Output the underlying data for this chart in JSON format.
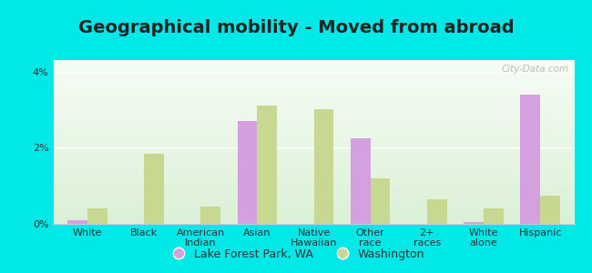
{
  "title": "Geographical mobility - Moved from abroad",
  "categories": [
    "White",
    "Black",
    "American\nIndian",
    "Asian",
    "Native\nHawaiian",
    "Other\nrace",
    "2+\nraces",
    "White\nalone",
    "Hispanic"
  ],
  "lfp_values": [
    0.1,
    0.0,
    0.0,
    2.7,
    0.0,
    2.25,
    0.0,
    0.05,
    3.4
  ],
  "wa_values": [
    0.4,
    1.85,
    0.45,
    3.1,
    3.0,
    1.2,
    0.65,
    0.4,
    0.75
  ],
  "lfp_color": "#d4a0e0",
  "wa_color": "#c8d890",
  "background_outer": "#00e8e8",
  "ylim": [
    0,
    4.3
  ],
  "yticks": [
    0,
    2,
    4
  ],
  "ytick_labels": [
    "0%",
    "2%",
    "4%"
  ],
  "legend_lfp": "Lake Forest Park, WA",
  "legend_wa": "Washington",
  "watermark": "City-Data.com",
  "bar_width": 0.35,
  "title_fontsize": 14,
  "tick_fontsize": 8,
  "legend_fontsize": 9
}
